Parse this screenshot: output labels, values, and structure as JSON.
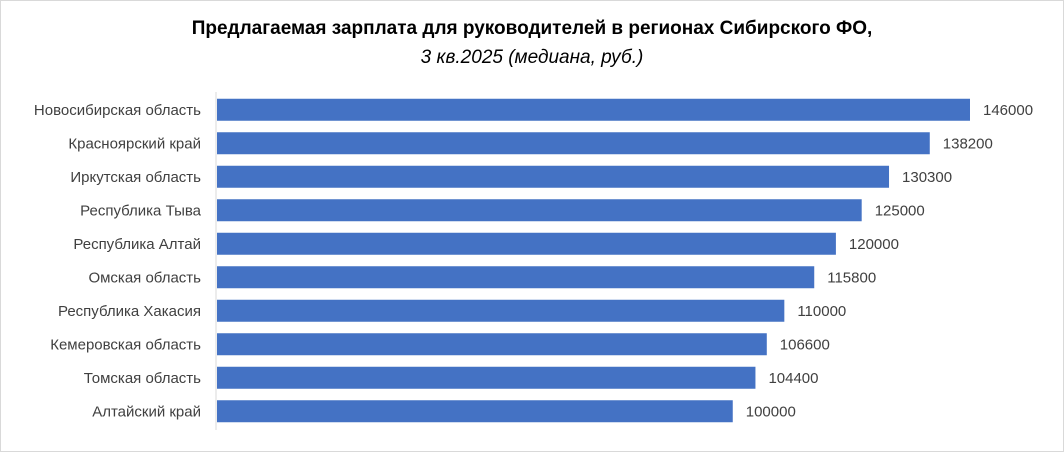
{
  "chart_data": {
    "type": "bar",
    "orientation": "horizontal",
    "title": "Предлагаемая зарплата для руководителей в регионах Сибирского ФО,",
    "subtitle": "3 кв.2025 (медиана, руб.)",
    "categories": [
      "Новосибирская область",
      "Красноярский край",
      "Иркутская область",
      "Республика Тыва",
      "Республика Алтай",
      "Омская область",
      "Республика Хакасия",
      "Кемеровская область",
      "Томская область",
      "Алтайский край"
    ],
    "values": [
      146000,
      138200,
      130300,
      125000,
      120000,
      115800,
      110000,
      106600,
      104400,
      100000
    ],
    "data_labels": [
      "146000",
      "138200",
      "130300",
      "125000",
      "120000",
      "115800",
      "110000",
      "106600",
      "104400",
      "100000"
    ],
    "xlim": [
      0,
      146000
    ],
    "grid": false,
    "legend": "none",
    "bar_color": "#4472C4",
    "axis_color": "#d9d9d9"
  }
}
